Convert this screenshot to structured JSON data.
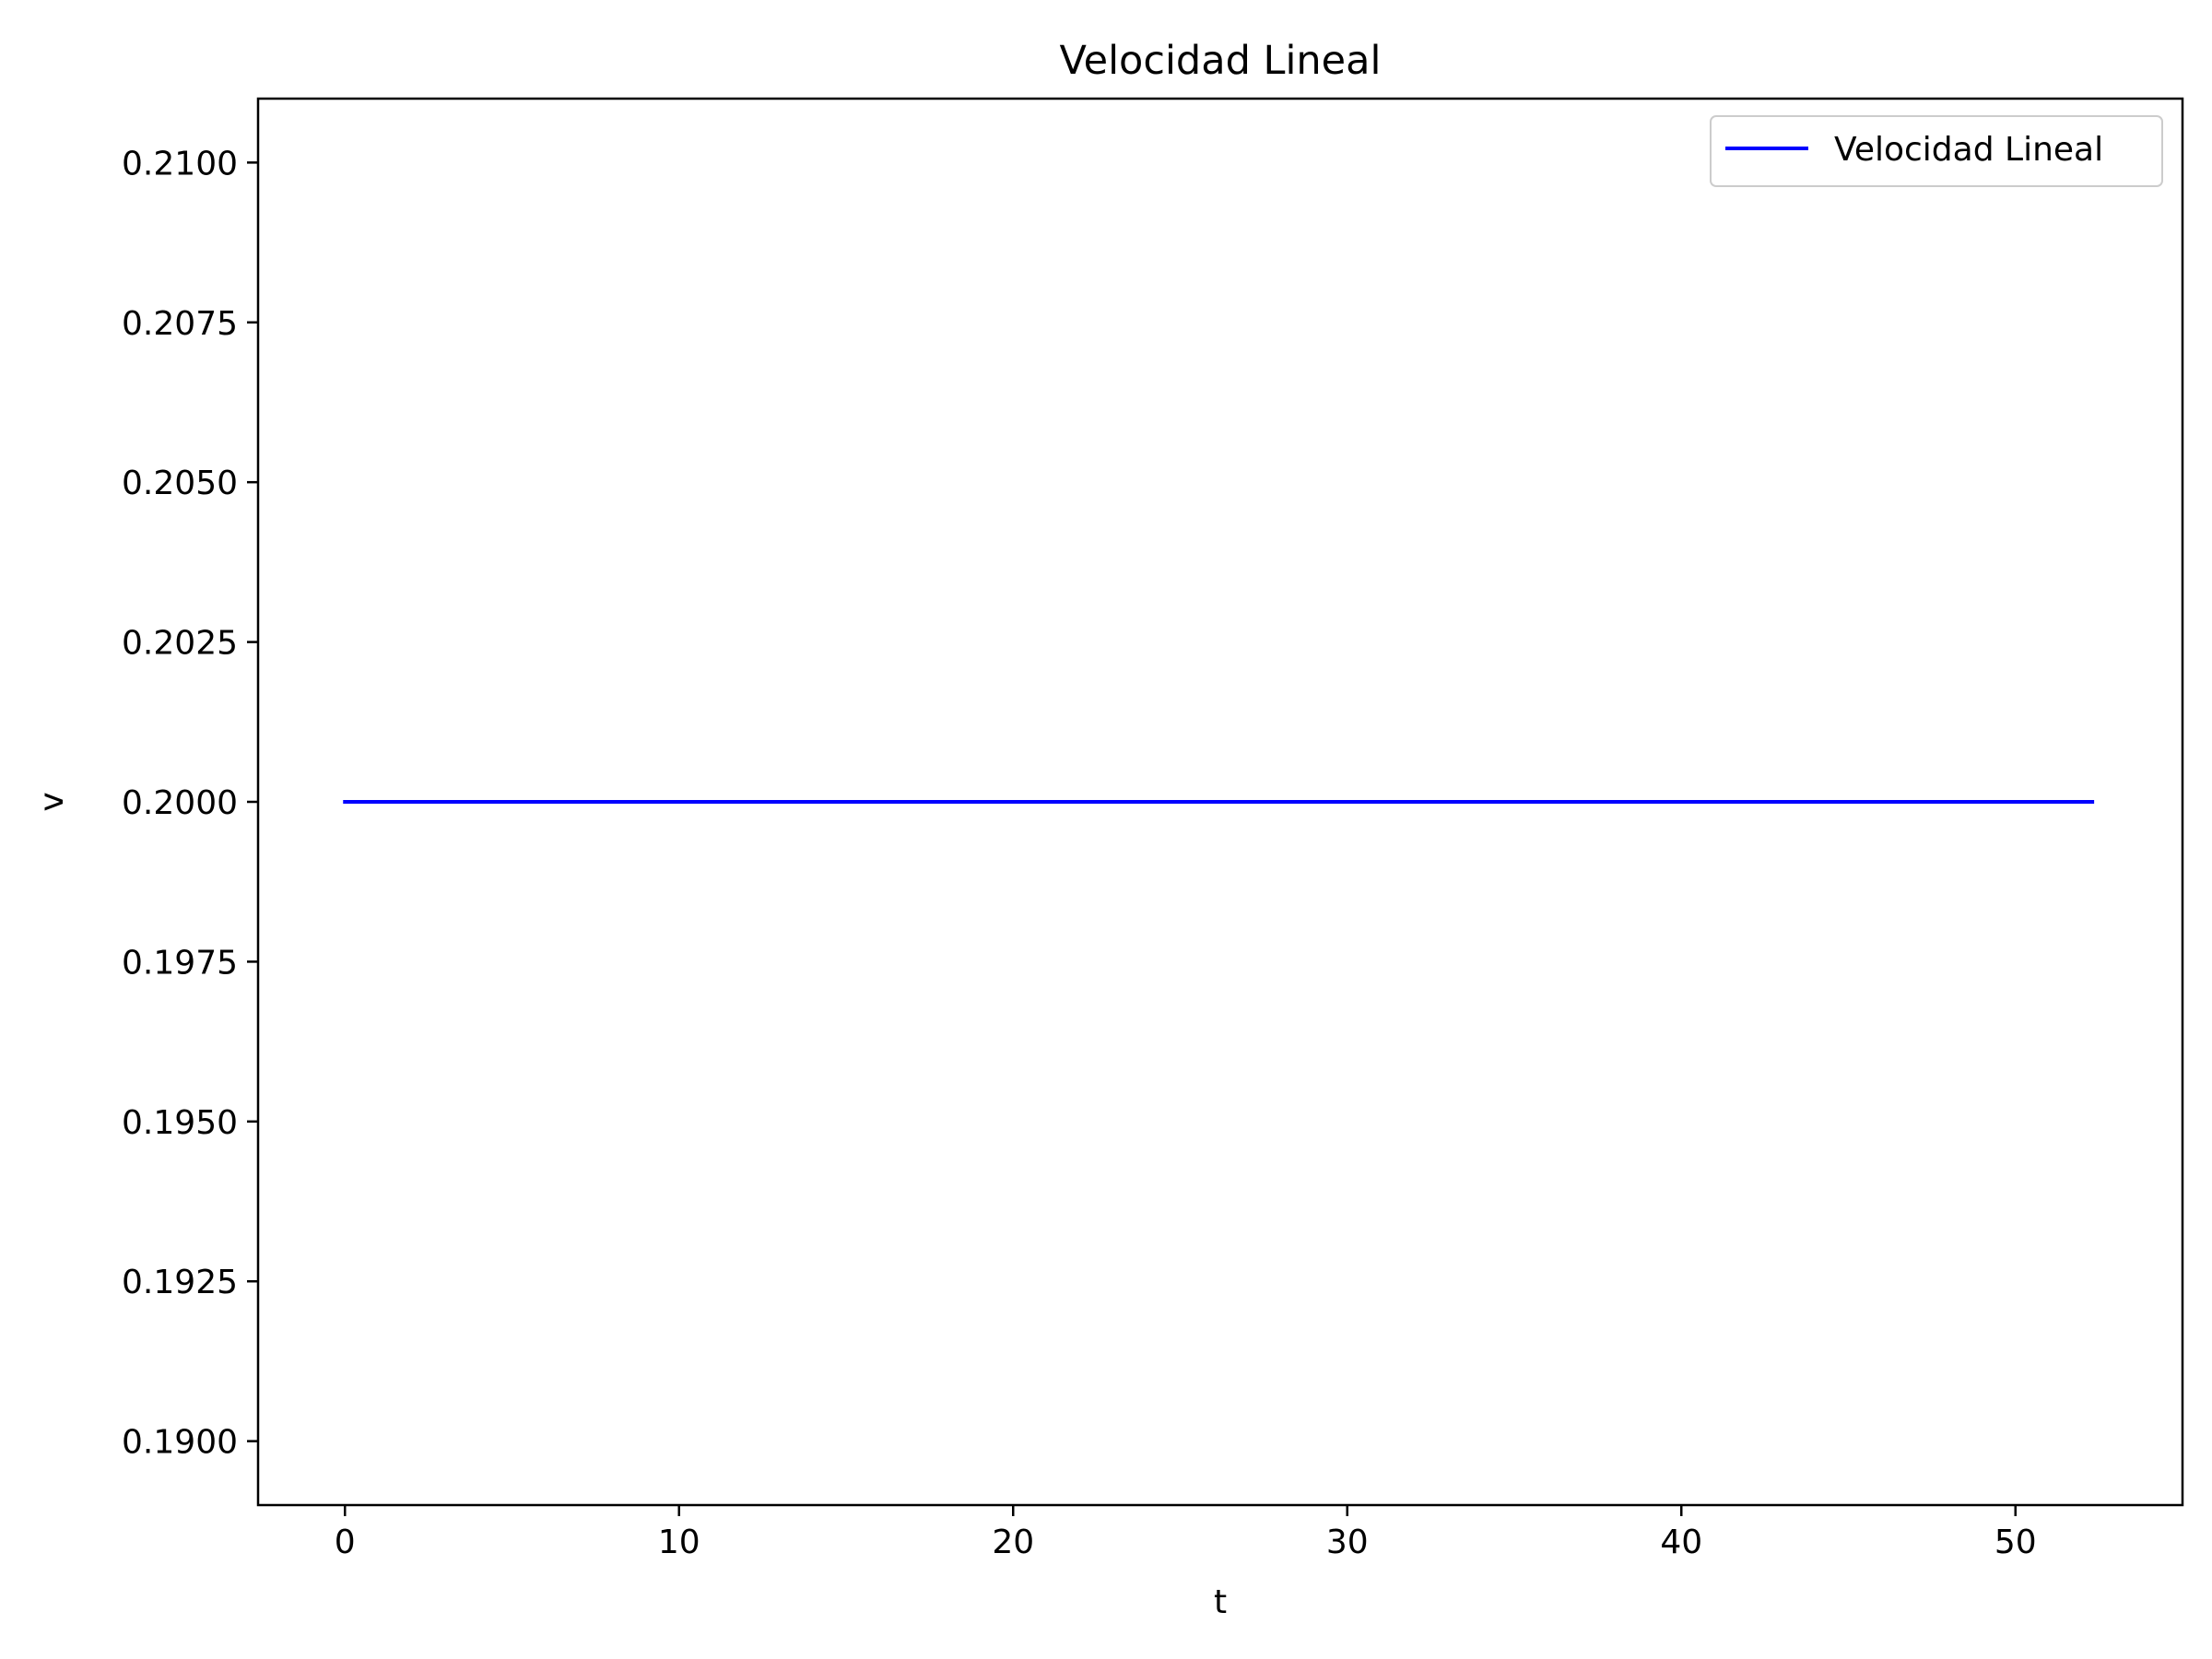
{
  "chart_data": {
    "type": "line",
    "title": "Velocidad Lineal",
    "xlabel": "t",
    "ylabel": "v",
    "xlim": [
      -2.6,
      55.0
    ],
    "ylim": [
      0.189,
      0.211
    ],
    "xticks": [
      0,
      10,
      20,
      30,
      40,
      50
    ],
    "xtick_labels": [
      "0",
      "10",
      "20",
      "30",
      "40",
      "50"
    ],
    "yticks": [
      0.19,
      0.1925,
      0.195,
      0.1975,
      0.2,
      0.2025,
      0.205,
      0.2075,
      0.21
    ],
    "ytick_labels": [
      "0.1900",
      "0.1925",
      "0.1950",
      "0.1975",
      "0.2000",
      "0.2025",
      "0.2050",
      "0.2075",
      "0.2100"
    ],
    "grid": false,
    "legend_position": "upper right",
    "series": [
      {
        "name": "Velocidad Lineal",
        "color": "#0000ff",
        "x": [
          0,
          52.3
        ],
        "y": [
          0.2,
          0.2
        ]
      }
    ]
  }
}
